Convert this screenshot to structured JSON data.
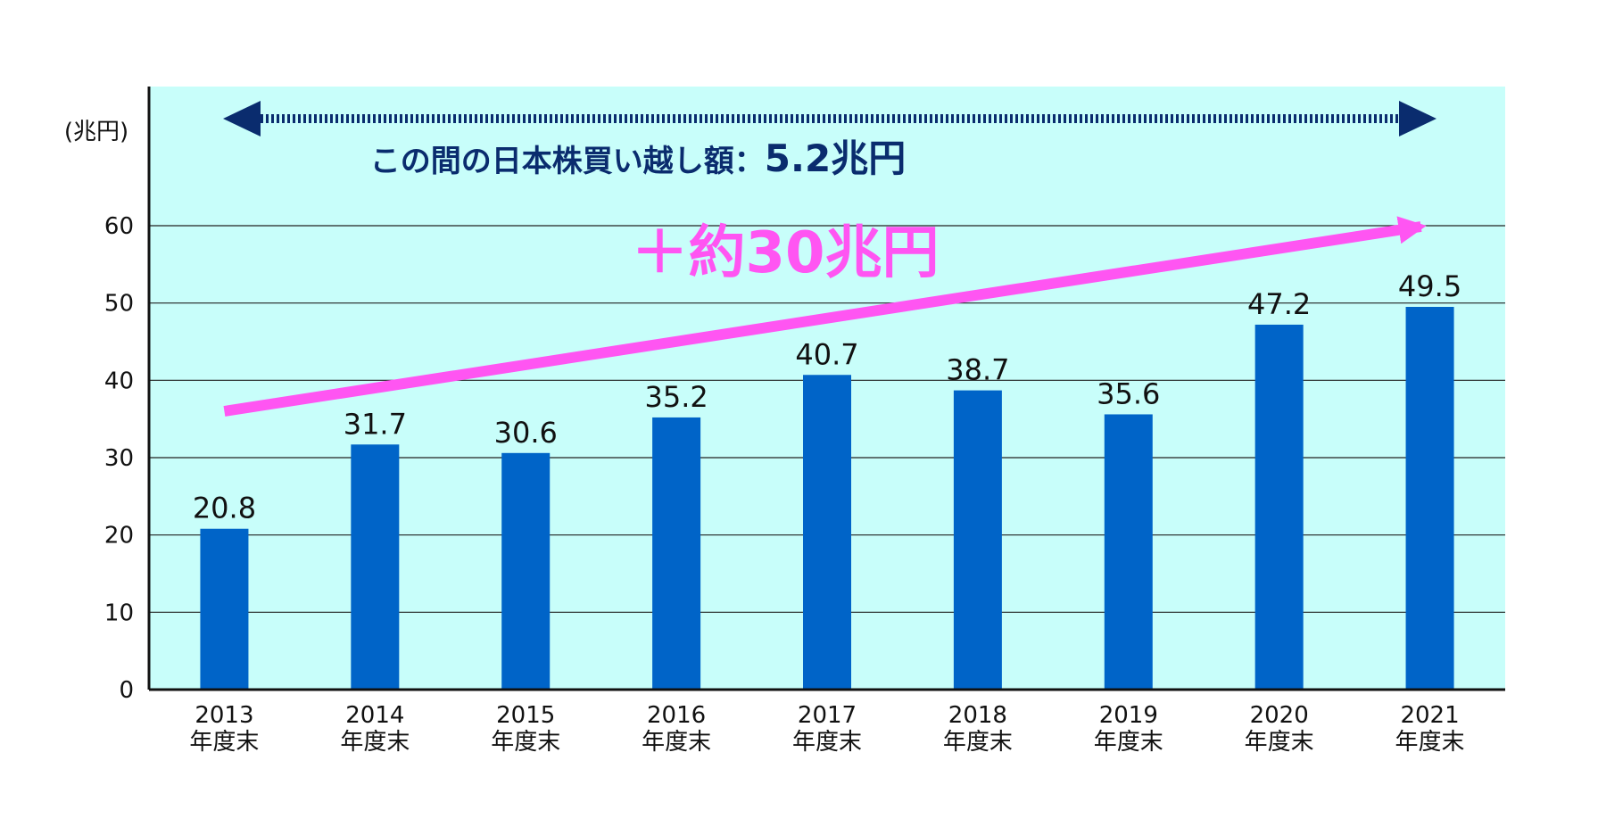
{
  "chart_data": {
    "type": "bar",
    "categories": [
      [
        "2013",
        "年度末"
      ],
      [
        "2014",
        "年度末"
      ],
      [
        "2015",
        "年度末"
      ],
      [
        "2016",
        "年度末"
      ],
      [
        "2017",
        "年度末"
      ],
      [
        "2018",
        "年度末"
      ],
      [
        "2019",
        "年度末"
      ],
      [
        "2020",
        "年度末"
      ],
      [
        "2021",
        "年度末"
      ]
    ],
    "values": [
      20.8,
      31.7,
      30.6,
      35.2,
      40.7,
      38.7,
      35.6,
      47.2,
      49.5
    ],
    "value_labels": [
      "20.8",
      "31.7",
      "30.6",
      "35.2",
      "40.7",
      "38.7",
      "35.6",
      "47.2",
      "49.5"
    ],
    "ylabel": "(兆円)",
    "ylim": [
      0,
      60
    ],
    "yticks": [
      0,
      10,
      20,
      30,
      40,
      50,
      60
    ],
    "grid": true,
    "trend_arrow": {
      "from_value": 36,
      "to_value": 60,
      "label": "＋約30兆円"
    },
    "span_annotation": {
      "label": "この間の日本株買い越し額：",
      "value": "5.2兆円"
    },
    "colors": {
      "plot_background": "#c8fefa",
      "bar": "#0064c8",
      "trend_arrow": "#ff55f2",
      "span_arrow": "#0a2c6e",
      "text": "#111111",
      "annotation_text": "#0a2c6e"
    }
  }
}
